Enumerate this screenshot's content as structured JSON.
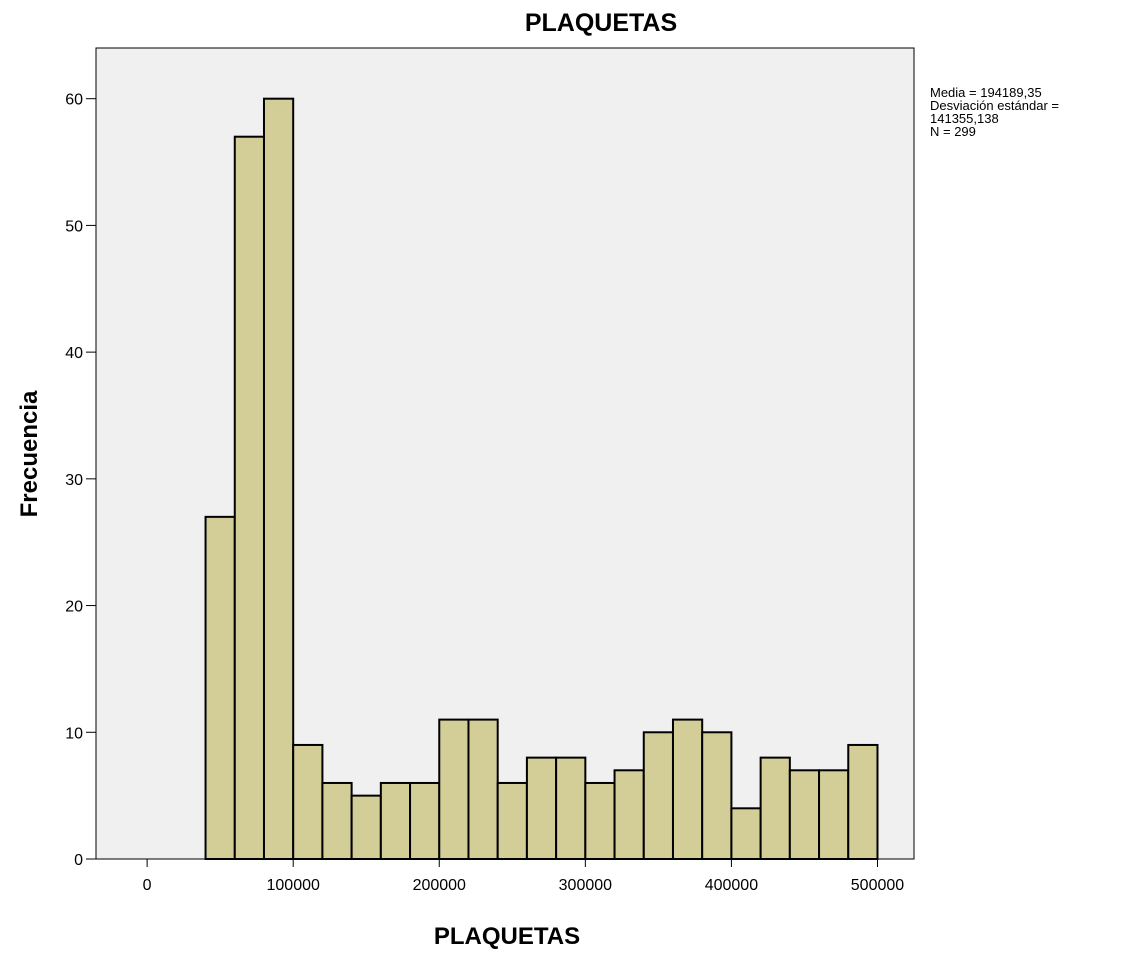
{
  "chart_data": {
    "type": "histogram",
    "title": "PLAQUETAS",
    "xlabel": "PLAQUETAS",
    "ylabel": "Frecuencia",
    "xlim": [
      -35000,
      525000
    ],
    "ylim": [
      0,
      64
    ],
    "x_ticks": [
      0,
      100000,
      200000,
      300000,
      400000,
      500000
    ],
    "x_tick_labels": [
      "0",
      "100000",
      "200000",
      "300000",
      "400000",
      "500000"
    ],
    "y_ticks": [
      0,
      10,
      20,
      30,
      40,
      50,
      60
    ],
    "y_tick_labels": [
      "0",
      "10",
      "20",
      "30",
      "40",
      "50",
      "60"
    ],
    "bins": [
      {
        "x0": 40000,
        "x1": 60000,
        "value": 27
      },
      {
        "x0": 60000,
        "x1": 80000,
        "value": 57
      },
      {
        "x0": 80000,
        "x1": 100000,
        "value": 60
      },
      {
        "x0": 100000,
        "x1": 120000,
        "value": 9
      },
      {
        "x0": 120000,
        "x1": 140000,
        "value": 6
      },
      {
        "x0": 140000,
        "x1": 160000,
        "value": 5
      },
      {
        "x0": 160000,
        "x1": 180000,
        "value": 6
      },
      {
        "x0": 180000,
        "x1": 200000,
        "value": 6
      },
      {
        "x0": 200000,
        "x1": 220000,
        "value": 11
      },
      {
        "x0": 220000,
        "x1": 240000,
        "value": 11
      },
      {
        "x0": 240000,
        "x1": 260000,
        "value": 6
      },
      {
        "x0": 260000,
        "x1": 280000,
        "value": 8
      },
      {
        "x0": 280000,
        "x1": 300000,
        "value": 8
      },
      {
        "x0": 300000,
        "x1": 320000,
        "value": 6
      },
      {
        "x0": 320000,
        "x1": 340000,
        "value": 7
      },
      {
        "x0": 340000,
        "x1": 360000,
        "value": 10
      },
      {
        "x0": 360000,
        "x1": 380000,
        "value": 11
      },
      {
        "x0": 380000,
        "x1": 400000,
        "value": 10
      },
      {
        "x0": 400000,
        "x1": 420000,
        "value": 4
      },
      {
        "x0": 420000,
        "x1": 440000,
        "value": 8
      },
      {
        "x0": 440000,
        "x1": 460000,
        "value": 7
      },
      {
        "x0": 460000,
        "x1": 480000,
        "value": 7
      },
      {
        "x0": 480000,
        "x1": 500000,
        "value": 9
      }
    ],
    "grid": false,
    "colors": {
      "bar_fill": "#d3ce97",
      "bar_stroke": "#000000",
      "plot_background": "#f0f0f0"
    }
  },
  "stats": {
    "mean_line": "Media = 194189,35",
    "sd_label_line": "Desviación estándar =",
    "sd_value_line": "141355,138",
    "n_line": "N = 299"
  }
}
